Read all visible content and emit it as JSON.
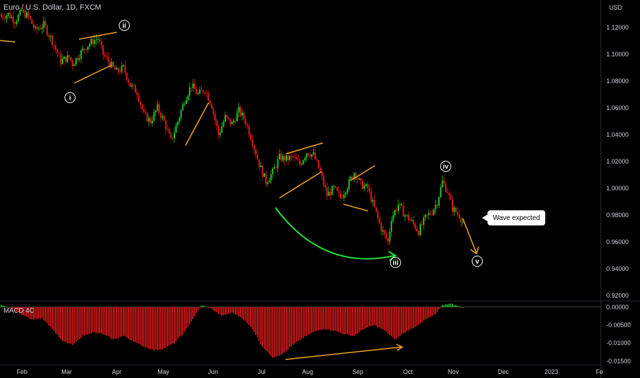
{
  "header": {
    "title": "Euro / U.S. Dollar, 1D, FXCM"
  },
  "macd": {
    "label": "MACD 4C"
  },
  "callout": {
    "text": "Wave expected"
  },
  "colors": {
    "up": "#22c722",
    "down": "#e31b1b",
    "annotation": "#f5a623",
    "green_arrow": "#22e03a",
    "background": "#000000"
  },
  "chart_data": {
    "type": "candlestick",
    "currency": "USD",
    "price_axis": {
      "ticks": [
        "1.12000",
        "1.10000",
        "1.08000",
        "1.06000",
        "1.04000",
        "1.02000",
        "1.00000",
        "0.98000",
        "0.96000",
        "0.94000",
        "0.92000"
      ],
      "range": [
        0.917,
        1.137
      ]
    },
    "macd_axis": {
      "ticks": [
        "0.00000",
        "-0.00500",
        "-0.01000",
        "-0.01500"
      ],
      "range": [
        -0.0155,
        0.0013
      ]
    },
    "months": [
      "Feb",
      "Mar",
      "Apr",
      "May",
      "Jun",
      "Jul",
      "Aug",
      "Sep",
      "Oct",
      "Nov",
      "Dec",
      "2023",
      "Fe"
    ],
    "close_waypoints": [
      [
        0,
        1.128
      ],
      [
        4,
        1.13
      ],
      [
        8,
        1.125
      ],
      [
        12,
        1.132
      ],
      [
        16,
        1.128
      ],
      [
        20,
        1.118
      ],
      [
        25,
        1.122
      ],
      [
        30,
        1.11
      ],
      [
        35,
        1.095
      ],
      [
        40,
        1.098
      ],
      [
        42,
        1.093
      ],
      [
        46,
        1.1
      ],
      [
        50,
        1.106
      ],
      [
        54,
        1.11
      ],
      [
        57,
        1.112
      ],
      [
        60,
        1.1
      ],
      [
        64,
        1.093
      ],
      [
        68,
        1.087
      ],
      [
        72,
        1.09
      ],
      [
        76,
        1.077
      ],
      [
        80,
        1.072
      ],
      [
        84,
        1.055
      ],
      [
        88,
        1.05
      ],
      [
        92,
        1.06
      ],
      [
        96,
        1.05
      ],
      [
        100,
        1.035
      ],
      [
        104,
        1.05
      ],
      [
        108,
        1.066
      ],
      [
        112,
        1.077
      ],
      [
        116,
        1.07
      ],
      [
        120,
        1.074
      ],
      [
        124,
        1.062
      ],
      [
        128,
        1.04
      ],
      [
        132,
        1.053
      ],
      [
        136,
        1.048
      ],
      [
        140,
        1.058
      ],
      [
        144,
        1.05
      ],
      [
        148,
        1.035
      ],
      [
        152,
        1.018
      ],
      [
        156,
        1.005
      ],
      [
        160,
        1.012
      ],
      [
        164,
        1.023
      ],
      [
        168,
        1.022
      ],
      [
        172,
        1.023
      ],
      [
        176,
        1.018
      ],
      [
        180,
        1.027
      ],
      [
        184,
        1.025
      ],
      [
        188,
        1.012
      ],
      [
        192,
        0.995
      ],
      [
        196,
        1.0
      ],
      [
        200,
        0.993
      ],
      [
        204,
        1.002
      ],
      [
        208,
        1.012
      ],
      [
        212,
        1.003
      ],
      [
        216,
        1.0
      ],
      [
        220,
        0.985
      ],
      [
        224,
        0.97
      ],
      [
        228,
        0.96
      ],
      [
        230,
        0.978
      ],
      [
        234,
        0.988
      ],
      [
        238,
        0.98
      ],
      [
        242,
        0.975
      ],
      [
        246,
        0.968
      ],
      [
        250,
        0.978
      ],
      [
        254,
        0.983
      ],
      [
        257,
        0.99
      ],
      [
        260,
        1.005
      ],
      [
        263,
        0.998
      ],
      [
        266,
        0.985
      ],
      [
        270,
        0.98
      ],
      [
        272,
        0.975
      ]
    ],
    "macd_waypoints": [
      [
        0,
        0.0005
      ],
      [
        6,
        -0.0005
      ],
      [
        12,
        -0.002
      ],
      [
        18,
        -0.0035
      ],
      [
        24,
        -0.003
      ],
      [
        30,
        -0.006
      ],
      [
        36,
        -0.0095
      ],
      [
        42,
        -0.0105
      ],
      [
        48,
        -0.008
      ],
      [
        54,
        -0.007
      ],
      [
        60,
        -0.0075
      ],
      [
        66,
        -0.009
      ],
      [
        72,
        -0.008
      ],
      [
        78,
        -0.0095
      ],
      [
        84,
        -0.011
      ],
      [
        90,
        -0.012
      ],
      [
        96,
        -0.0115
      ],
      [
        102,
        -0.01
      ],
      [
        108,
        -0.007
      ],
      [
        114,
        -0.0025
      ],
      [
        118,
        0.0005
      ],
      [
        124,
        -0.0005
      ],
      [
        130,
        -0.0025
      ],
      [
        136,
        -0.0015
      ],
      [
        142,
        -0.003
      ],
      [
        148,
        -0.006
      ],
      [
        154,
        -0.011
      ],
      [
        160,
        -0.014
      ],
      [
        166,
        -0.013
      ],
      [
        172,
        -0.0105
      ],
      [
        178,
        -0.0085
      ],
      [
        184,
        -0.007
      ],
      [
        190,
        -0.006
      ],
      [
        196,
        -0.0065
      ],
      [
        202,
        -0.0075
      ],
      [
        208,
        -0.008
      ],
      [
        214,
        -0.006
      ],
      [
        220,
        -0.005
      ],
      [
        226,
        -0.0065
      ],
      [
        232,
        -0.009
      ],
      [
        238,
        -0.007
      ],
      [
        244,
        -0.0055
      ],
      [
        250,
        -0.0035
      ],
      [
        256,
        -0.002
      ],
      [
        260,
        0.0005
      ],
      [
        264,
        0.001
      ],
      [
        268,
        0.0006
      ],
      [
        272,
        -0.0002
      ]
    ],
    "wave_labels": [
      "i",
      "ii",
      "iii",
      "iv",
      "v"
    ]
  }
}
